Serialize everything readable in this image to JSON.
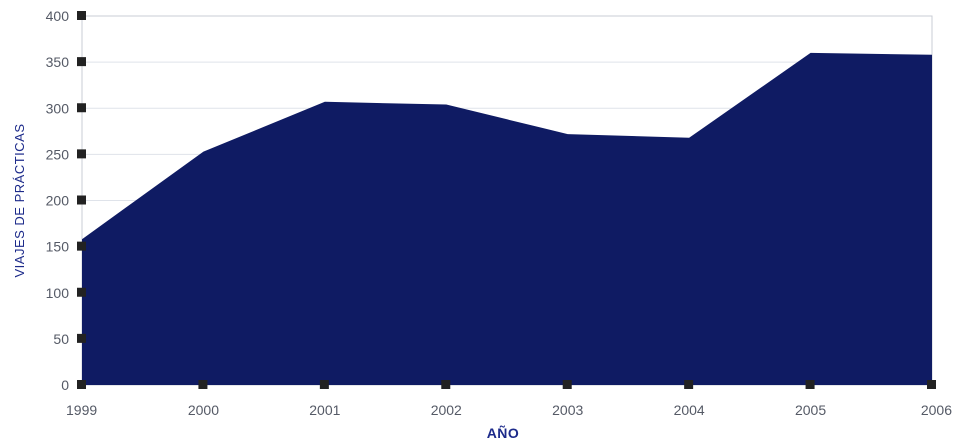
{
  "chart_data": {
    "type": "area",
    "categories": [
      "1999",
      "2000",
      "2001",
      "2002",
      "2003",
      "2004",
      "2005",
      "2006"
    ],
    "series": [
      {
        "values": [
          158,
          253,
          307,
          304,
          272,
          268,
          360,
          358
        ]
      }
    ],
    "xlabel": "AÑO",
    "ylabel": "VIAJES DE PRÁCTICAS",
    "ylim": [
      0,
      400
    ],
    "yticks": [
      0,
      50,
      100,
      150,
      200,
      250,
      300,
      350,
      400
    ],
    "grid": true,
    "legend": "none",
    "colors": {
      "fill": "#0f1b63",
      "axis_text": "#555a66",
      "label_text": "#1c2a8a",
      "marker": "#222222",
      "grid": "#dfe3ea"
    }
  }
}
